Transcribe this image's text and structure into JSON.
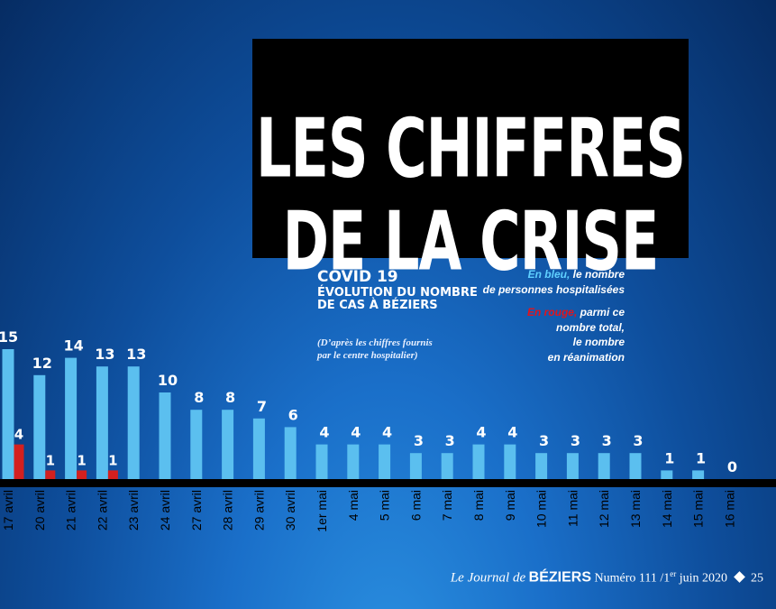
{
  "title": {
    "line1": "LES CHIFFRES",
    "line2": "DE LA CRISE"
  },
  "covid": {
    "line1": "COVID 19",
    "line2": "ÉVOLUTION DU NOMBRE",
    "line3": "DE CAS À BÉZIERS"
  },
  "source": "(D’après les chiffres fournis par le centre hospitalier)",
  "legend": {
    "blue_key": "En bleu,",
    "blue_text1": " le nombre",
    "blue_text2": "de personnes hospitalisées",
    "red_key": "En rouge,",
    "red_text1": " parmi ce",
    "red_text2": "nombre total,",
    "red_text3": "le nombre",
    "red_text4": "en réanimation"
  },
  "footer": {
    "journal": "Le Journal de",
    "city": "BÉZIERS",
    "issue": "Numéro 111 /1",
    "issue_sup": "er",
    "issue_end": " juin 2020",
    "page": "25"
  },
  "colors": {
    "blue_bar": "#5bbfef",
    "red_bar": "#d3201f",
    "axis": "#000000"
  },
  "chart_data": {
    "type": "bar",
    "categories": [
      "17 avril",
      "20 avril",
      "21 avril",
      "22 avril",
      "23 avril",
      "24 avril",
      "27 avril",
      "28 avril",
      "29 avril",
      "30 avril",
      "1er mai",
      "4 mai",
      "5 mai",
      "6 mai",
      "7 mai",
      "8 mai",
      "9 mai",
      "10 mai",
      "11 mai",
      "12 mai",
      "13 mai",
      "14 mai",
      "15 mai",
      "16 mai"
    ],
    "series": [
      {
        "name": "En bleu",
        "color": "#5bbfef",
        "values": [
          15,
          12,
          14,
          13,
          13,
          10,
          8,
          8,
          7,
          6,
          4,
          4,
          4,
          3,
          3,
          4,
          4,
          3,
          3,
          3,
          3,
          1,
          1,
          0
        ]
      },
      {
        "name": "En rouge",
        "color": "#d3201f",
        "values": [
          4,
          1,
          1,
          1,
          null,
          null,
          null,
          null,
          null,
          null,
          null,
          null,
          null,
          null,
          null,
          null,
          null,
          null,
          null,
          null,
          null,
          null,
          null,
          null
        ]
      }
    ],
    "ylim": [
      0,
      15
    ],
    "grid": false,
    "legend_position": "top-right"
  }
}
